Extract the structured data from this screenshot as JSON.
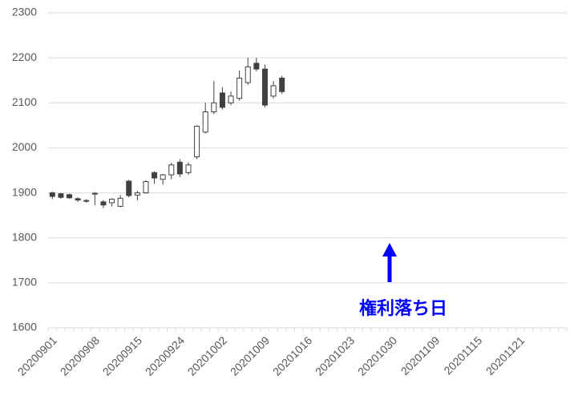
{
  "chart_data": {
    "type": "candlestick",
    "categories": [
      "20200901",
      null,
      null,
      null,
      null,
      "20200908",
      null,
      null,
      null,
      null,
      "20200915",
      null,
      null,
      null,
      null,
      "20200924",
      null,
      null,
      null,
      null,
      "20201002",
      null,
      null,
      null,
      null,
      "20201009",
      null,
      null,
      null,
      null,
      "20201016",
      null,
      null,
      null,
      null,
      "20201023",
      null,
      null,
      null,
      null,
      "20201030",
      null,
      null,
      null,
      null,
      "20201109",
      null,
      null,
      null,
      null,
      "20201115",
      null,
      null,
      null,
      null,
      "20201121",
      null,
      null,
      null,
      null,
      null
    ],
    "series": [
      {
        "up_color": "#ffffff",
        "down_color": "#404040",
        "edge_color": "#404040",
        "open": [
          1900,
          1898,
          1896,
          1887,
          1883,
          1897,
          1880,
          1878,
          1870,
          1926,
          1895,
          1900,
          1945,
          1930,
          1940,
          1968,
          1945,
          1980,
          2035,
          2080,
          2122,
          2100,
          2110,
          2145,
          2188,
          2175,
          2115,
          2155,
          null,
          null,
          null,
          null,
          null,
          null,
          null,
          null,
          null,
          null,
          null,
          null,
          null,
          null,
          null,
          null,
          null,
          null,
          null,
          null,
          null,
          null,
          null,
          null,
          null,
          null,
          null,
          null,
          null,
          null,
          null,
          null,
          null
        ],
        "high": [
          1903,
          1900,
          1898,
          1890,
          1886,
          1902,
          1884,
          1888,
          1895,
          1929,
          1905,
          1928,
          1948,
          1942,
          1967,
          1975,
          1968,
          2050,
          2100,
          2148,
          2135,
          2125,
          2172,
          2200,
          2200,
          2185,
          2148,
          2160,
          null,
          null,
          null,
          null,
          null,
          null,
          null,
          null,
          null,
          null,
          null,
          null,
          null,
          null,
          null,
          null,
          null,
          null,
          null,
          null,
          null,
          null,
          null,
          null,
          null,
          null,
          null,
          null,
          null,
          null,
          null,
          null,
          null
        ],
        "low": [
          1886,
          1887,
          1887,
          1880,
          1878,
          1872,
          1866,
          1870,
          1868,
          1890,
          1883,
          1898,
          1920,
          1918,
          1930,
          1935,
          1940,
          1975,
          2032,
          2075,
          2085,
          2095,
          2105,
          2140,
          2170,
          2090,
          2110,
          2120,
          null,
          null,
          null,
          null,
          null,
          null,
          null,
          null,
          null,
          null,
          null,
          null,
          null,
          null,
          null,
          null,
          null,
          null,
          null,
          null,
          null,
          null,
          null,
          null,
          null,
          null,
          null,
          null,
          null,
          null,
          null,
          null,
          null
        ],
        "close": [
          1892,
          1890,
          1889,
          1884,
          1882,
          1899,
          1873,
          1886,
          1888,
          1894,
          1900,
          1925,
          1933,
          1940,
          1962,
          1942,
          1962,
          2048,
          2080,
          2100,
          2090,
          2115,
          2155,
          2180,
          2175,
          2095,
          2138,
          2125,
          null,
          null,
          null,
          null,
          null,
          null,
          null,
          null,
          null,
          null,
          null,
          null,
          null,
          null,
          null,
          null,
          null,
          null,
          null,
          null,
          null,
          null,
          null,
          null,
          null,
          null,
          null,
          null,
          null,
          null,
          null,
          null,
          null
        ]
      }
    ],
    "ylim": [
      1600,
      2300
    ],
    "yticks": [
      1600,
      1700,
      1800,
      1900,
      2000,
      2100,
      2200,
      2300
    ],
    "grid": true,
    "annotation": "権利落ち日"
  }
}
